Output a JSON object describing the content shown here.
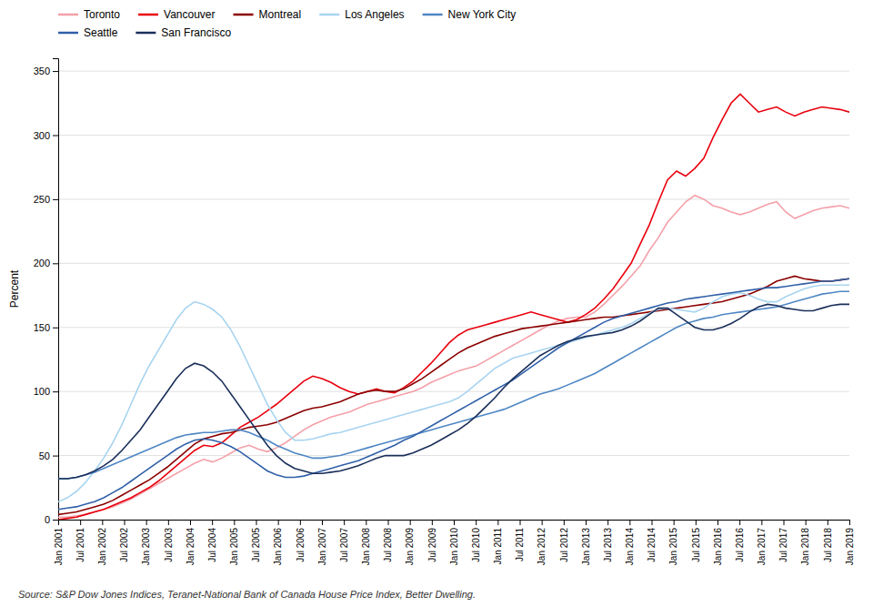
{
  "chart_data": {
    "type": "line",
    "ylabel": "Percent",
    "annotations": [
      "Source: S&P Dow Jones Indices, Teranet-National Bank of Canada House Price Index, Better Dwelling."
    ],
    "x": [
      0,
      2.4828,
      4.9655,
      7.4483,
      9.931,
      12.4138,
      14.8966,
      17.3793,
      19.8621,
      22.3448,
      24.8276,
      27.3103,
      29.7931,
      32.2759,
      34.7586,
      37.2414,
      39.7241,
      42.2069,
      44.6897,
      47.1724,
      49.6552,
      52.1379,
      54.6207,
      57.1034,
      59.5862,
      62.069,
      64.5517,
      67.0345,
      69.5172,
      72,
      74.4828,
      76.9655,
      79.4483,
      81.931,
      84.4138,
      86.8966,
      89.3793,
      91.8621,
      94.3448,
      96.8276,
      99.3103,
      101.7931,
      104.2759,
      106.7586,
      109.2414,
      111.7241,
      114.2069,
      116.6897,
      119.1724,
      121.6552,
      124.1379,
      126.6207,
      129.1034,
      131.5862,
      134.069,
      136.5517,
      139.0345,
      141.5172,
      144,
      146.4828,
      148.9655,
      151.4483,
      153.931,
      156.4138,
      158.8966,
      161.3793,
      163.8621,
      166.3448,
      168.8276,
      171.3103,
      173.7931,
      176.2759,
      178.7586,
      181.2414,
      183.7241,
      186.2069,
      188.6897,
      191.1724,
      193.6552,
      196.1379,
      198.6207,
      201.1034,
      203.5862,
      206.069,
      208.5517,
      211.0345,
      213.5172,
      216
    ],
    "xlim": [
      0,
      216
    ],
    "xticks": [
      {
        "value": 0,
        "label": "Jan 2001"
      },
      {
        "value": 6,
        "label": "Jul 2001"
      },
      {
        "value": 12,
        "label": "Jan 2002"
      },
      {
        "value": 18,
        "label": "Jul 2002"
      },
      {
        "value": 24,
        "label": "Jan 2003"
      },
      {
        "value": 30,
        "label": "Jul 2003"
      },
      {
        "value": 36,
        "label": "Jan 2004"
      },
      {
        "value": 42,
        "label": "Jul 2004"
      },
      {
        "value": 48,
        "label": "Jan 2005"
      },
      {
        "value": 54,
        "label": "Jul 2005"
      },
      {
        "value": 60,
        "label": "Jan 2006"
      },
      {
        "value": 66,
        "label": "Jul 2006"
      },
      {
        "value": 72,
        "label": "Jan 2007"
      },
      {
        "value": 78,
        "label": "Jul 2007"
      },
      {
        "value": 84,
        "label": "Jan 2008"
      },
      {
        "value": 90,
        "label": "Jul 2008"
      },
      {
        "value": 96,
        "label": "Jan 2009"
      },
      {
        "value": 102,
        "label": "Jul 2009"
      },
      {
        "value": 108,
        "label": "Jan 2010"
      },
      {
        "value": 114,
        "label": "Jul 2010"
      },
      {
        "value": 120,
        "label": "Jan 2011"
      },
      {
        "value": 126,
        "label": "Jul 2011"
      },
      {
        "value": 132,
        "label": "Jan 2012"
      },
      {
        "value": 138,
        "label": "Jul 2012"
      },
      {
        "value": 144,
        "label": "Jan 2013"
      },
      {
        "value": 150,
        "label": "Jul 2013"
      },
      {
        "value": 156,
        "label": "Jan 2014"
      },
      {
        "value": 162,
        "label": "Jul 2014"
      },
      {
        "value": 168,
        "label": "Jan 2015"
      },
      {
        "value": 174,
        "label": "Jul 2015"
      },
      {
        "value": 180,
        "label": "Jan 2016"
      },
      {
        "value": 186,
        "label": "Jul 2016"
      },
      {
        "value": 192,
        "label": "Jan 2017"
      },
      {
        "value": 198,
        "label": "Jul 2017"
      },
      {
        "value": 204,
        "label": "Jan 2018"
      },
      {
        "value": 210,
        "label": "Jul 2018"
      },
      {
        "value": 216,
        "label": "Jan 2019"
      }
    ],
    "ylim": [
      0,
      360
    ],
    "yticks": [
      0,
      50,
      100,
      150,
      200,
      250,
      300,
      350
    ],
    "grid": true,
    "legend": "top",
    "series": [
      {
        "name": "Toronto",
        "color": "#f4a0a8",
        "values": [
          2,
          2,
          3,
          4,
          6,
          8,
          10,
          13,
          16,
          20,
          24,
          28,
          32,
          36,
          40,
          44,
          47,
          45,
          48,
          52,
          56,
          58,
          55,
          53,
          56,
          60,
          65,
          70,
          74,
          77,
          80,
          82,
          84,
          87,
          90,
          92,
          94,
          96,
          98,
          100,
          103,
          107,
          110,
          113,
          116,
          118,
          120,
          124,
          128,
          132,
          136,
          140,
          144,
          148,
          152,
          155,
          157,
          158,
          158,
          162,
          168,
          175,
          182,
          190,
          198,
          210,
          220,
          232,
          240,
          248,
          253,
          250,
          245,
          243,
          240,
          238,
          240,
          243,
          246,
          248,
          240,
          235,
          238,
          241,
          243,
          244,
          245,
          243
        ]
      },
      {
        "name": "Vancouver",
        "color": "#e8000d",
        "values": [
          0,
          1,
          2,
          4,
          6,
          8,
          11,
          14,
          17,
          21,
          25,
          30,
          36,
          42,
          48,
          54,
          58,
          57,
          60,
          66,
          72,
          76,
          80,
          85,
          90,
          96,
          102,
          108,
          112,
          110,
          107,
          103,
          100,
          98,
          100,
          102,
          100,
          99,
          103,
          108,
          115,
          122,
          130,
          138,
          144,
          148,
          150,
          152,
          154,
          156,
          158,
          160,
          162,
          160,
          158,
          156,
          154,
          156,
          160,
          165,
          172,
          180,
          190,
          200,
          215,
          230,
          248,
          265,
          272,
          268,
          274,
          282,
          298,
          312,
          325,
          332,
          325,
          318,
          320,
          322,
          318,
          315,
          318,
          320,
          322,
          321,
          320,
          318
        ]
      },
      {
        "name": "Montreal",
        "color": "#8b0000",
        "values": [
          4,
          5,
          6,
          8,
          10,
          12,
          15,
          19,
          23,
          27,
          31,
          36,
          41,
          47,
          53,
          59,
          63,
          65,
          67,
          68,
          70,
          72,
          73,
          74,
          76,
          79,
          82,
          85,
          87,
          88,
          90,
          92,
          95,
          98,
          100,
          101,
          100,
          100,
          102,
          106,
          110,
          115,
          120,
          125,
          130,
          134,
          137,
          140,
          143,
          145,
          147,
          149,
          150,
          151,
          152,
          153,
          154,
          155,
          156,
          157,
          158,
          158,
          159,
          160,
          161,
          162,
          163,
          164,
          165,
          166,
          167,
          168,
          169,
          170,
          172,
          174,
          176,
          179,
          182,
          186,
          188,
          190,
          188,
          187,
          186,
          186,
          187,
          188
        ]
      },
      {
        "name": "Los Angeles",
        "color": "#a8d4f0",
        "values": [
          14,
          17,
          22,
          29,
          38,
          48,
          60,
          74,
          90,
          106,
          120,
          132,
          144,
          156,
          165,
          170,
          168,
          164,
          158,
          148,
          135,
          120,
          105,
          90,
          78,
          68,
          62,
          62,
          63,
          65,
          67,
          68,
          70,
          72,
          74,
          76,
          78,
          80,
          82,
          84,
          86,
          88,
          90,
          92,
          95,
          100,
          106,
          112,
          118,
          122,
          126,
          128,
          130,
          132,
          134,
          136,
          138,
          140,
          142,
          144,
          146,
          148,
          150,
          153,
          157,
          161,
          164,
          165,
          164,
          163,
          162,
          165,
          170,
          174,
          176,
          177,
          175,
          172,
          170,
          170,
          174,
          177,
          180,
          182,
          183,
          183,
          183,
          183
        ]
      },
      {
        "name": "New York City",
        "color": "#4f87c4",
        "values": [
          32,
          32,
          33,
          35,
          37,
          40,
          43,
          46,
          49,
          52,
          55,
          58,
          61,
          64,
          66,
          67,
          68,
          68,
          69,
          70,
          70,
          68,
          65,
          62,
          58,
          55,
          52,
          50,
          48,
          48,
          49,
          50,
          52,
          54,
          56,
          58,
          60,
          62,
          64,
          66,
          68,
          70,
          72,
          74,
          76,
          78,
          80,
          82,
          84,
          86,
          89,
          92,
          95,
          98,
          100,
          102,
          105,
          108,
          111,
          114,
          118,
          122,
          126,
          130,
          134,
          138,
          142,
          146,
          150,
          153,
          155,
          157,
          158,
          160,
          161,
          162,
          163,
          164,
          165,
          166,
          168,
          170,
          172,
          174,
          176,
          177,
          178,
          178
        ]
      },
      {
        "name": "Seattle",
        "color": "#3060a8",
        "values": [
          8,
          9,
          10,
          12,
          14,
          17,
          21,
          25,
          30,
          35,
          40,
          45,
          50,
          55,
          59,
          62,
          63,
          62,
          60,
          57,
          53,
          48,
          43,
          38,
          35,
          33,
          33,
          34,
          36,
          38,
          40,
          42,
          44,
          46,
          49,
          52,
          55,
          58,
          62,
          65,
          69,
          73,
          77,
          81,
          85,
          89,
          93,
          97,
          101,
          105,
          109,
          114,
          119,
          124,
          129,
          134,
          138,
          142,
          146,
          150,
          154,
          157,
          159,
          161,
          163,
          165,
          167,
          169,
          170,
          172,
          173,
          174,
          175,
          176,
          177,
          178,
          179,
          180,
          181,
          181,
          182,
          183,
          184,
          185,
          186,
          186,
          187,
          188
        ]
      },
      {
        "name": "San Francisco",
        "color": "#1a2f5a",
        "values": [
          32,
          32,
          33,
          35,
          38,
          42,
          47,
          54,
          62,
          70,
          80,
          90,
          100,
          110,
          118,
          122,
          120,
          115,
          108,
          98,
          88,
          78,
          68,
          58,
          50,
          44,
          40,
          38,
          36,
          36,
          37,
          38,
          40,
          42,
          45,
          48,
          50,
          50,
          50,
          52,
          55,
          58,
          62,
          66,
          70,
          75,
          81,
          88,
          95,
          103,
          110,
          116,
          122,
          128,
          132,
          136,
          139,
          141,
          143,
          144,
          145,
          146,
          148,
          151,
          155,
          160,
          165,
          165,
          160,
          155,
          150,
          148,
          148,
          150,
          153,
          157,
          162,
          166,
          168,
          167,
          165,
          164,
          163,
          163,
          165,
          167,
          168,
          168
        ]
      }
    ]
  }
}
